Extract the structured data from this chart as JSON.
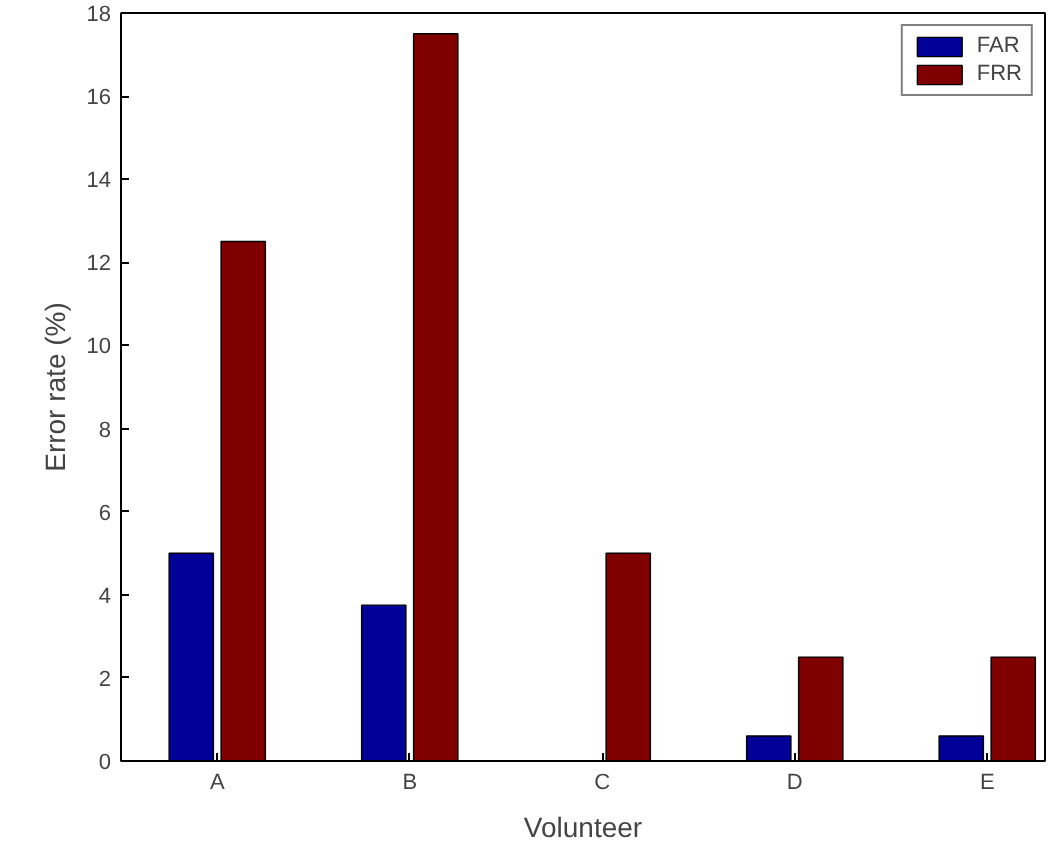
{
  "chart_data": {
    "type": "bar",
    "xlabel": "Volunteer",
    "ylabel": "Error rate (%)",
    "categories": [
      "A",
      "B",
      "C",
      "D",
      "E"
    ],
    "series": [
      {
        "name": "FAR",
        "color": "#000099",
        "values": [
          5,
          3.75,
          0,
          0.6,
          0.6
        ]
      },
      {
        "name": "FRR",
        "color": "#800000",
        "values": [
          12.5,
          17.5,
          5,
          2.5,
          2.5
        ]
      }
    ],
    "ylim": [
      0,
      18
    ],
    "yticks": [
      0,
      2,
      4,
      6,
      8,
      10,
      12,
      14,
      16,
      18
    ],
    "grid": false,
    "legend": "top right"
  }
}
